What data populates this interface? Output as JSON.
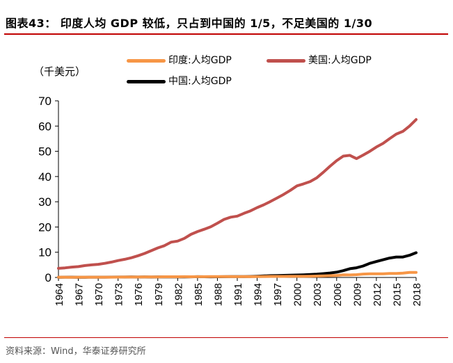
{
  "title": "图表43：  印度人均 GDP 较低，只占到中国的 1/5，不足美国的 1/30",
  "source": "资料来源：Wind，华泰证券研究所",
  "chart_data": {
    "type": "line",
    "unit": "（千美元）",
    "ylim": [
      0,
      70
    ],
    "yticks": [
      0,
      10,
      20,
      30,
      40,
      50,
      60,
      70
    ],
    "xlim": [
      1964,
      2018
    ],
    "xticks": [
      "1964",
      "1967",
      "1970",
      "1973",
      "1976",
      "1979",
      "1982",
      "1985",
      "1988",
      "1991",
      "1994",
      "1997",
      "2000",
      "2003",
      "2006",
      "2009",
      "2012",
      "2015",
      "2018"
    ],
    "legend": [
      "印度:人均GDP",
      "美国:人均GDP",
      "中国:人均GDP"
    ],
    "colors": {
      "india": "#f79646",
      "usa": "#c0504d",
      "china": "#000000"
    },
    "x": [
      1964,
      1965,
      1966,
      1967,
      1968,
      1969,
      1970,
      1971,
      1972,
      1973,
      1974,
      1975,
      1976,
      1977,
      1978,
      1979,
      1980,
      1981,
      1982,
      1983,
      1984,
      1985,
      1986,
      1987,
      1988,
      1989,
      1990,
      1991,
      1992,
      1993,
      1994,
      1995,
      1996,
      1997,
      1998,
      1999,
      2000,
      2001,
      2002,
      2003,
      2004,
      2005,
      2006,
      2007,
      2008,
      2009,
      2010,
      2011,
      2012,
      2013,
      2014,
      2015,
      2016,
      2017,
      2018
    ],
    "series": [
      {
        "name": "美国:人均GDP",
        "key": "usa",
        "values": [
          3.6,
          3.8,
          4.1,
          4.3,
          4.7,
          5.0,
          5.2,
          5.6,
          6.1,
          6.7,
          7.2,
          7.8,
          8.6,
          9.5,
          10.6,
          11.7,
          12.6,
          14.0,
          14.4,
          15.5,
          17.1,
          18.2,
          19.1,
          20.1,
          21.5,
          23.0,
          23.9,
          24.3,
          25.4,
          26.4,
          27.7,
          28.8,
          30.1,
          31.5,
          32.9,
          34.5,
          36.3,
          37.1,
          38.0,
          39.5,
          41.7,
          44.1,
          46.3,
          48.1,
          48.4,
          47.1,
          48.5,
          50.0,
          51.7,
          53.1,
          55.0,
          56.8,
          57.9,
          60.0,
          62.6
        ]
      },
      {
        "name": "中国:人均GDP",
        "key": "china",
        "values": [
          0.09,
          0.1,
          0.1,
          0.09,
          0.09,
          0.1,
          0.11,
          0.12,
          0.13,
          0.16,
          0.16,
          0.18,
          0.17,
          0.19,
          0.16,
          0.18,
          0.2,
          0.2,
          0.2,
          0.23,
          0.25,
          0.29,
          0.28,
          0.25,
          0.28,
          0.31,
          0.32,
          0.33,
          0.37,
          0.38,
          0.47,
          0.61,
          0.71,
          0.78,
          0.83,
          0.87,
          0.96,
          1.05,
          1.15,
          1.29,
          1.51,
          1.75,
          2.1,
          2.7,
          3.47,
          3.84,
          4.55,
          5.6,
          6.3,
          7.0,
          7.7,
          8.1,
          8.1,
          8.8,
          9.8
        ]
      },
      {
        "name": "印度:人均GDP",
        "key": "india",
        "values": [
          0.12,
          0.12,
          0.09,
          0.1,
          0.1,
          0.11,
          0.11,
          0.12,
          0.12,
          0.14,
          0.16,
          0.16,
          0.16,
          0.19,
          0.2,
          0.22,
          0.27,
          0.27,
          0.27,
          0.29,
          0.28,
          0.3,
          0.31,
          0.34,
          0.36,
          0.35,
          0.37,
          0.3,
          0.32,
          0.3,
          0.35,
          0.38,
          0.4,
          0.42,
          0.41,
          0.44,
          0.44,
          0.45,
          0.47,
          0.54,
          0.62,
          0.71,
          0.8,
          1.02,
          1.0,
          1.1,
          1.36,
          1.46,
          1.44,
          1.44,
          1.57,
          1.6,
          1.73,
          1.98,
          2.0
        ]
      }
    ]
  }
}
